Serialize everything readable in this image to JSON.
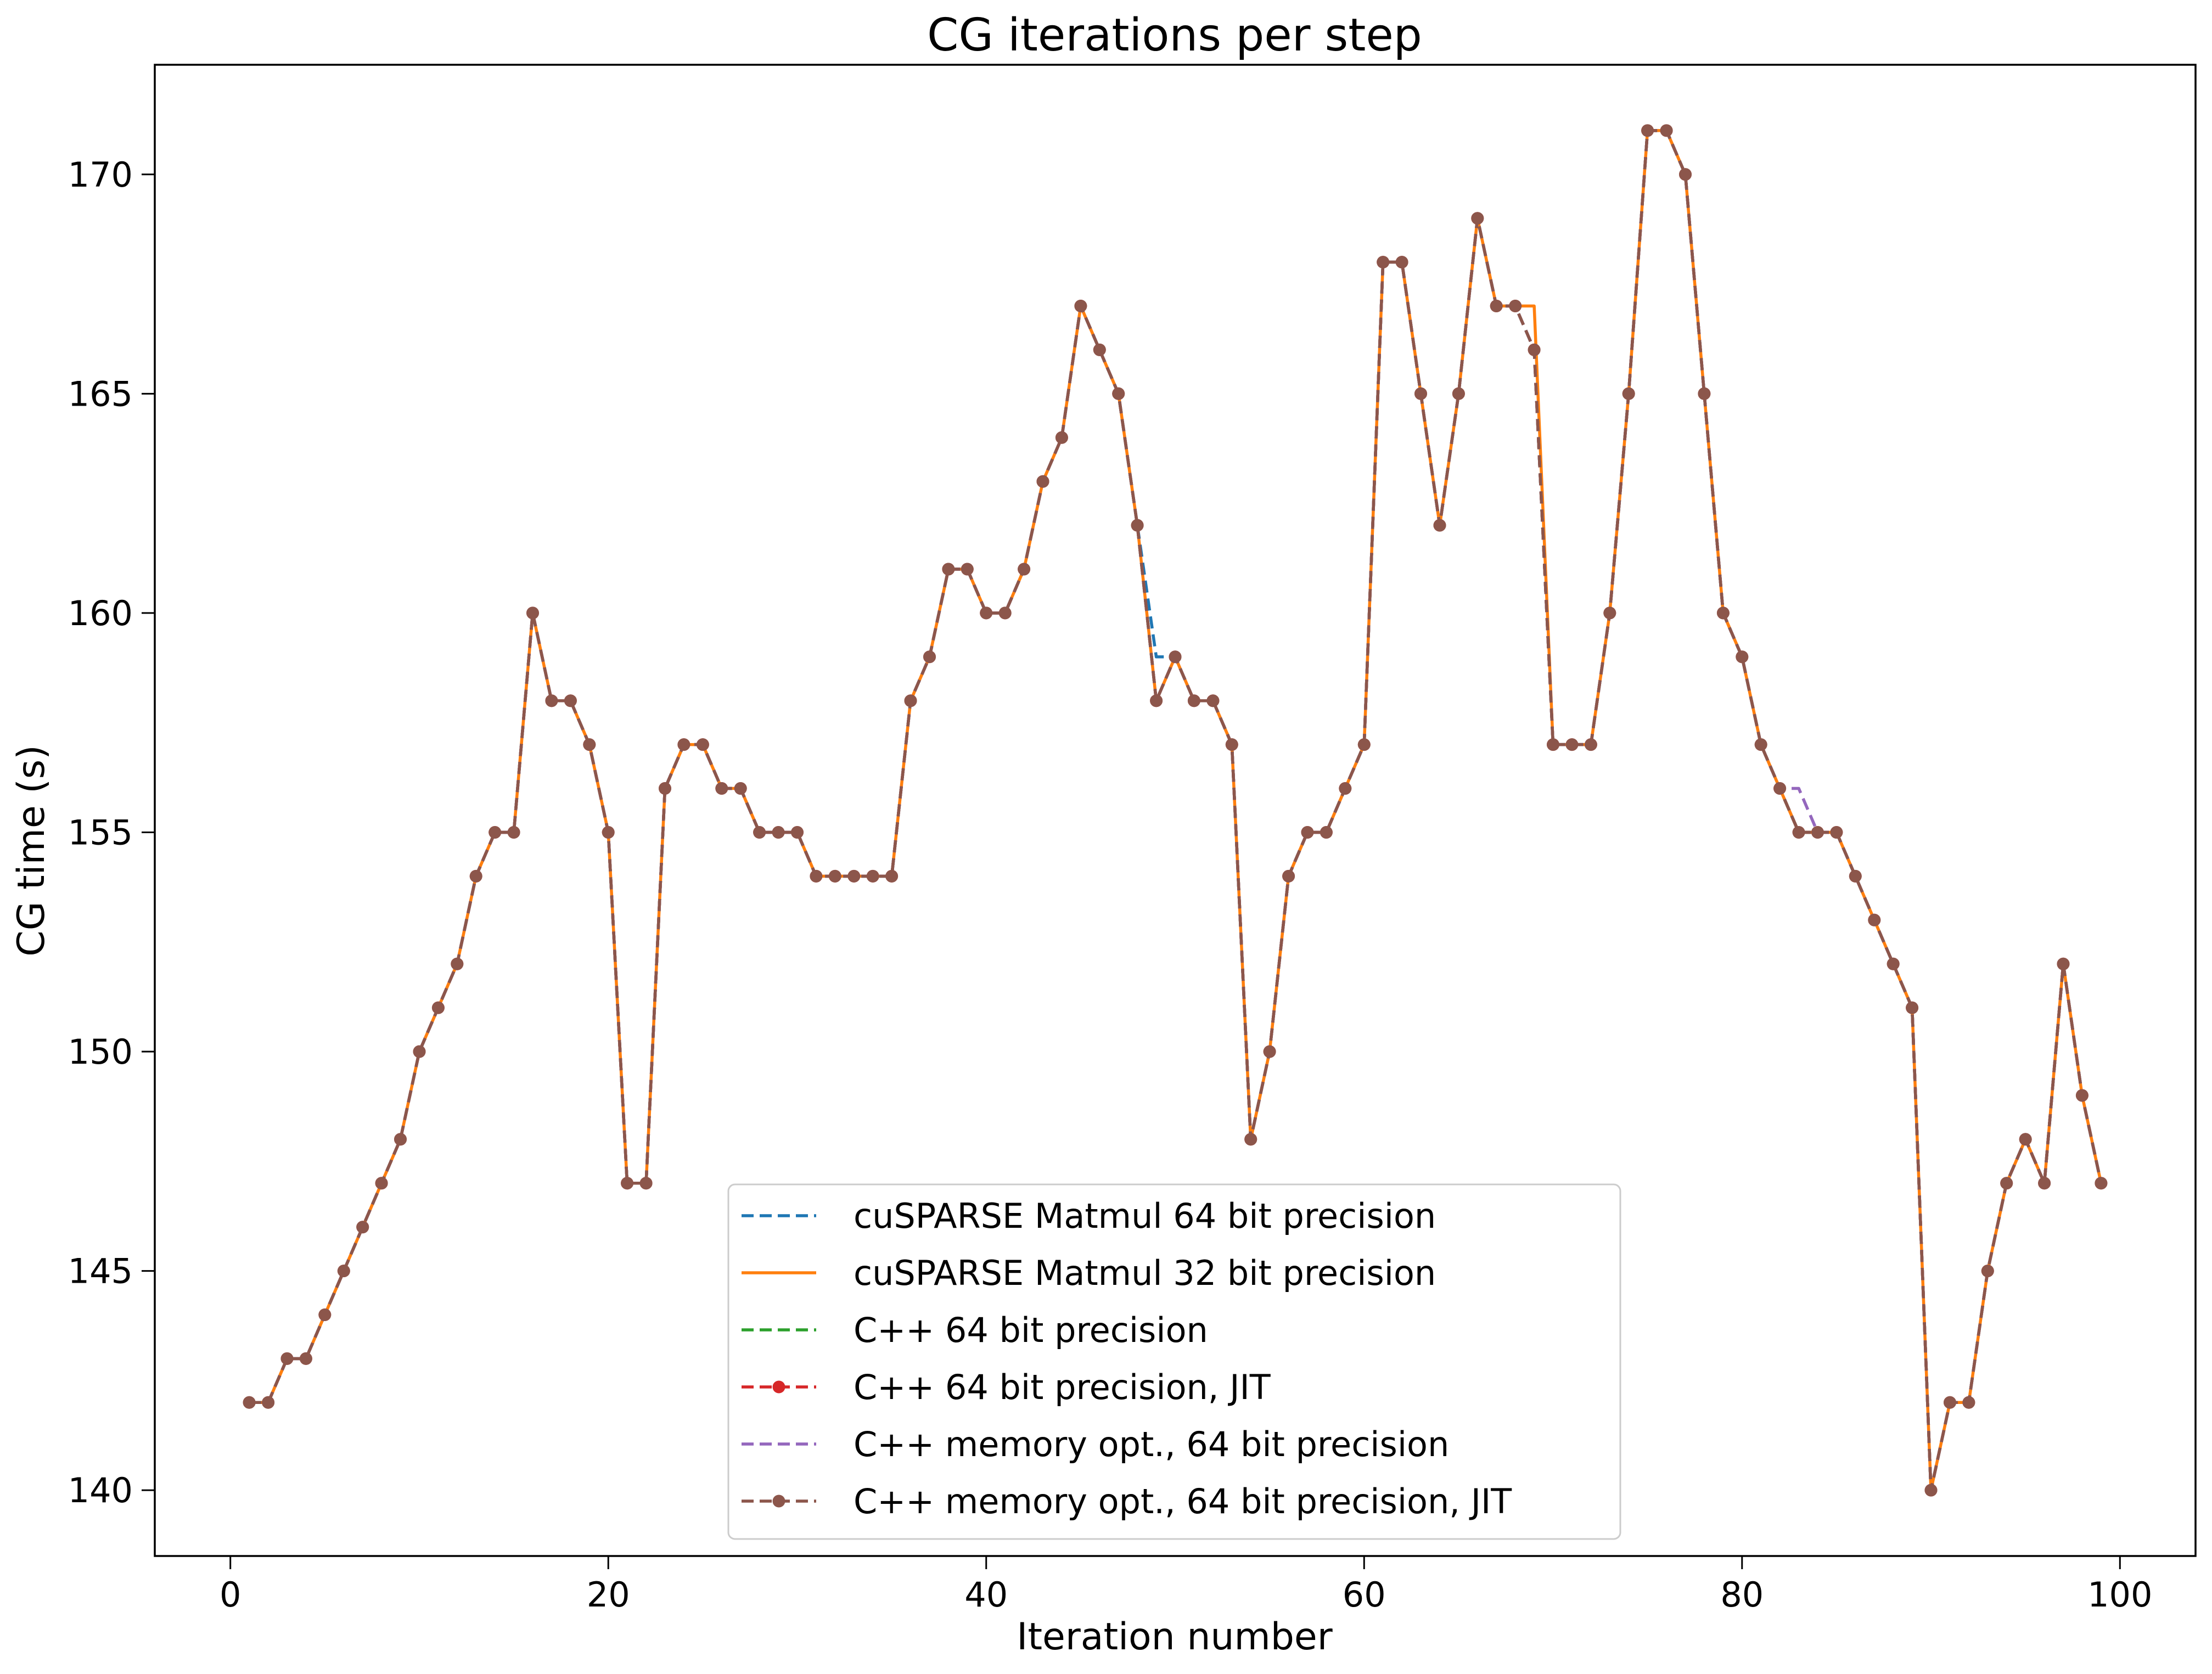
{
  "chart_data": {
    "type": "line",
    "title": "CG iterations per step",
    "xlabel": "Iteration number",
    "ylabel": "CG time (s)",
    "xlim": [
      -4,
      104
    ],
    "ylim": [
      138.5,
      172.5
    ],
    "x_ticks": [
      0,
      20,
      40,
      60,
      80,
      100
    ],
    "y_ticks": [
      140,
      145,
      150,
      155,
      160,
      165,
      170
    ],
    "grid": false,
    "legend_position": "lower-center",
    "x": [
      1,
      2,
      3,
      4,
      5,
      6,
      7,
      8,
      9,
      10,
      11,
      12,
      13,
      14,
      15,
      16,
      17,
      18,
      19,
      20,
      21,
      22,
      23,
      24,
      25,
      26,
      27,
      28,
      29,
      30,
      31,
      32,
      33,
      34,
      35,
      36,
      37,
      38,
      39,
      40,
      41,
      42,
      43,
      44,
      45,
      46,
      47,
      48,
      49,
      50,
      51,
      52,
      53,
      54,
      55,
      56,
      57,
      58,
      59,
      60,
      61,
      62,
      63,
      64,
      65,
      66,
      67,
      68,
      69,
      70,
      71,
      72,
      73,
      74,
      75,
      76,
      77,
      78,
      79,
      80,
      81,
      82,
      83,
      84,
      85,
      86,
      87,
      88,
      89,
      90,
      91,
      92,
      93,
      94,
      95,
      96,
      97,
      98,
      99
    ],
    "series": [
      {
        "name": "cuSPARSE Matmul 64 bit precision",
        "color": "#1f77b4",
        "style": "dashed",
        "marker": "none",
        "values": [
          142,
          142,
          143,
          143,
          144,
          145,
          146,
          147,
          148,
          150,
          151,
          152,
          154,
          155,
          155,
          160,
          158,
          158,
          157,
          155,
          147,
          147,
          156,
          157,
          157,
          156,
          156,
          155,
          155,
          155,
          154,
          154,
          154,
          154,
          154,
          158,
          159,
          161,
          161,
          160,
          160,
          161,
          163,
          164,
          167,
          166,
          165,
          162,
          159,
          159,
          158,
          158,
          157,
          148,
          150,
          154,
          155,
          155,
          156,
          157,
          168,
          168,
          165,
          162,
          165,
          169,
          167,
          167,
          166,
          157,
          157,
          157,
          160,
          165,
          171,
          171,
          170,
          165,
          160,
          159,
          157,
          156,
          155,
          155,
          155,
          154,
          153,
          152,
          151,
          140,
          142,
          142,
          145,
          147,
          148,
          147,
          152,
          149,
          147
        ]
      },
      {
        "name": "cuSPARSE Matmul 32 bit precision",
        "color": "#ff7f0e",
        "style": "solid",
        "marker": "none",
        "values": [
          142,
          142,
          143,
          143,
          144,
          145,
          146,
          147,
          148,
          150,
          151,
          152,
          154,
          155,
          155,
          160,
          158,
          158,
          157,
          155,
          147,
          147,
          156,
          157,
          157,
          156,
          156,
          155,
          155,
          155,
          154,
          154,
          154,
          154,
          154,
          158,
          159,
          161,
          161,
          160,
          160,
          161,
          163,
          164,
          167,
          166,
          165,
          162,
          158,
          159,
          158,
          158,
          157,
          148,
          150,
          154,
          155,
          155,
          156,
          157,
          168,
          168,
          165,
          162,
          165,
          169,
          167,
          167,
          167,
          157,
          157,
          157,
          160,
          165,
          171,
          171,
          170,
          165,
          160,
          159,
          157,
          156,
          155,
          155,
          155,
          154,
          153,
          152,
          151,
          140,
          142,
          142,
          145,
          147,
          148,
          147,
          152,
          149,
          147
        ]
      },
      {
        "name": "C++ 64 bit precision",
        "color": "#2ca02c",
        "style": "dashed",
        "marker": "none",
        "values": [
          142,
          142,
          143,
          143,
          144,
          145,
          146,
          147,
          148,
          150,
          151,
          152,
          154,
          155,
          155,
          160,
          158,
          158,
          157,
          155,
          147,
          147,
          156,
          157,
          157,
          156,
          156,
          155,
          155,
          155,
          154,
          154,
          154,
          154,
          154,
          158,
          159,
          161,
          161,
          160,
          160,
          161,
          163,
          164,
          167,
          166,
          165,
          162,
          158,
          159,
          158,
          158,
          157,
          148,
          150,
          154,
          155,
          155,
          156,
          157,
          168,
          168,
          165,
          162,
          165,
          169,
          167,
          167,
          166,
          157,
          157,
          157,
          160,
          165,
          171,
          171,
          170,
          165,
          160,
          159,
          157,
          156,
          155,
          155,
          155,
          154,
          153,
          152,
          151,
          140,
          142,
          142,
          145,
          147,
          148,
          147,
          152,
          149,
          147
        ]
      },
      {
        "name": "C++ 64 bit precision, JIT",
        "color": "#d62728",
        "style": "dashed",
        "marker": "circle",
        "values": [
          142,
          142,
          143,
          143,
          144,
          145,
          146,
          147,
          148,
          150,
          151,
          152,
          154,
          155,
          155,
          160,
          158,
          158,
          157,
          155,
          147,
          147,
          156,
          157,
          157,
          156,
          156,
          155,
          155,
          155,
          154,
          154,
          154,
          154,
          154,
          158,
          159,
          161,
          161,
          160,
          160,
          161,
          163,
          164,
          167,
          166,
          165,
          162,
          158,
          159,
          158,
          158,
          157,
          148,
          150,
          154,
          155,
          155,
          156,
          157,
          168,
          168,
          165,
          162,
          165,
          169,
          167,
          167,
          166,
          157,
          157,
          157,
          160,
          165,
          171,
          171,
          170,
          165,
          160,
          159,
          157,
          156,
          155,
          155,
          155,
          154,
          153,
          152,
          151,
          140,
          142,
          142,
          145,
          147,
          148,
          147,
          152,
          149,
          147
        ]
      },
      {
        "name": "C++ memory opt., 64 bit precision",
        "color": "#9467bd",
        "style": "dashed",
        "marker": "none",
        "values": [
          142,
          142,
          143,
          143,
          144,
          145,
          146,
          147,
          148,
          150,
          151,
          152,
          154,
          155,
          155,
          160,
          158,
          158,
          157,
          155,
          147,
          147,
          156,
          157,
          157,
          156,
          156,
          155,
          155,
          155,
          154,
          154,
          154,
          154,
          154,
          158,
          159,
          161,
          161,
          160,
          160,
          161,
          163,
          164,
          167,
          166,
          165,
          162,
          158,
          159,
          158,
          158,
          157,
          148,
          150,
          154,
          155,
          155,
          156,
          157,
          168,
          168,
          165,
          162,
          165,
          169,
          167,
          167,
          166,
          157,
          157,
          157,
          160,
          165,
          171,
          171,
          170,
          165,
          160,
          159,
          157,
          156,
          156,
          155,
          155,
          154,
          153,
          152,
          151,
          140,
          142,
          142,
          145,
          147,
          148,
          147,
          152,
          149,
          147
        ]
      },
      {
        "name": "C++ memory opt., 64 bit precision, JIT",
        "color": "#8c564b",
        "style": "dashed",
        "marker": "circle",
        "values": [
          142,
          142,
          143,
          143,
          144,
          145,
          146,
          147,
          148,
          150,
          151,
          152,
          154,
          155,
          155,
          160,
          158,
          158,
          157,
          155,
          147,
          147,
          156,
          157,
          157,
          156,
          156,
          155,
          155,
          155,
          154,
          154,
          154,
          154,
          154,
          158,
          159,
          161,
          161,
          160,
          160,
          161,
          163,
          164,
          167,
          166,
          165,
          162,
          158,
          159,
          158,
          158,
          157,
          148,
          150,
          154,
          155,
          155,
          156,
          157,
          168,
          168,
          165,
          162,
          165,
          169,
          167,
          167,
          166,
          157,
          157,
          157,
          160,
          165,
          171,
          171,
          170,
          165,
          160,
          159,
          157,
          156,
          155,
          155,
          155,
          154,
          153,
          152,
          151,
          140,
          142,
          142,
          145,
          147,
          148,
          147,
          152,
          149,
          147
        ]
      }
    ]
  }
}
